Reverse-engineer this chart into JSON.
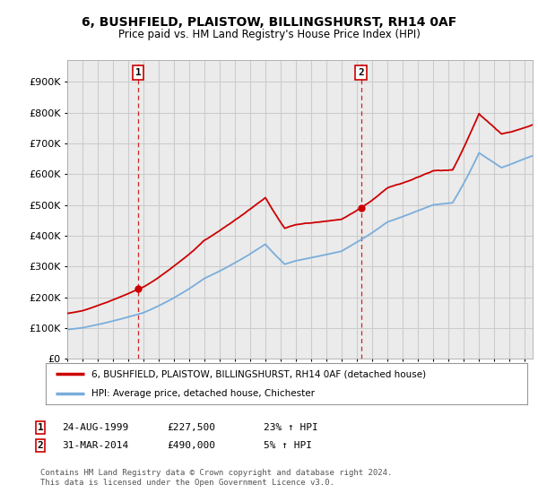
{
  "title": "6, BUSHFIELD, PLAISTOW, BILLINGSHURST, RH14 0AF",
  "subtitle": "Price paid vs. HM Land Registry's House Price Index (HPI)",
  "yticks": [
    0,
    100000,
    200000,
    300000,
    400000,
    500000,
    600000,
    700000,
    800000,
    900000
  ],
  "ylim": [
    0,
    970000
  ],
  "xlim_start": 1995.0,
  "xlim_end": 2025.5,
  "sale1_date": 1999.648,
  "sale1_price": 227500,
  "sale1_label": "1",
  "sale1_text": "24-AUG-1999",
  "sale1_amount": "£227,500",
  "sale1_pct": "23% ↑ HPI",
  "sale2_date": 2014.247,
  "sale2_price": 490000,
  "sale2_label": "2",
  "sale2_text": "31-MAR-2014",
  "sale2_amount": "£490,000",
  "sale2_pct": "5% ↑ HPI",
  "legend_label_red": "6, BUSHFIELD, PLAISTOW, BILLINGSHURST, RH14 0AF (detached house)",
  "legend_label_blue": "HPI: Average price, detached house, Chichester",
  "footer": "Contains HM Land Registry data © Crown copyright and database right 2024.\nThis data is licensed under the Open Government Licence v3.0.",
  "red_color": "#cc0000",
  "blue_color": "#7aaddb",
  "vline_color": "#cc0000",
  "grid_color": "#cccccc",
  "bg_color": "#ffffff",
  "plot_bg_color": "#ebebeb"
}
